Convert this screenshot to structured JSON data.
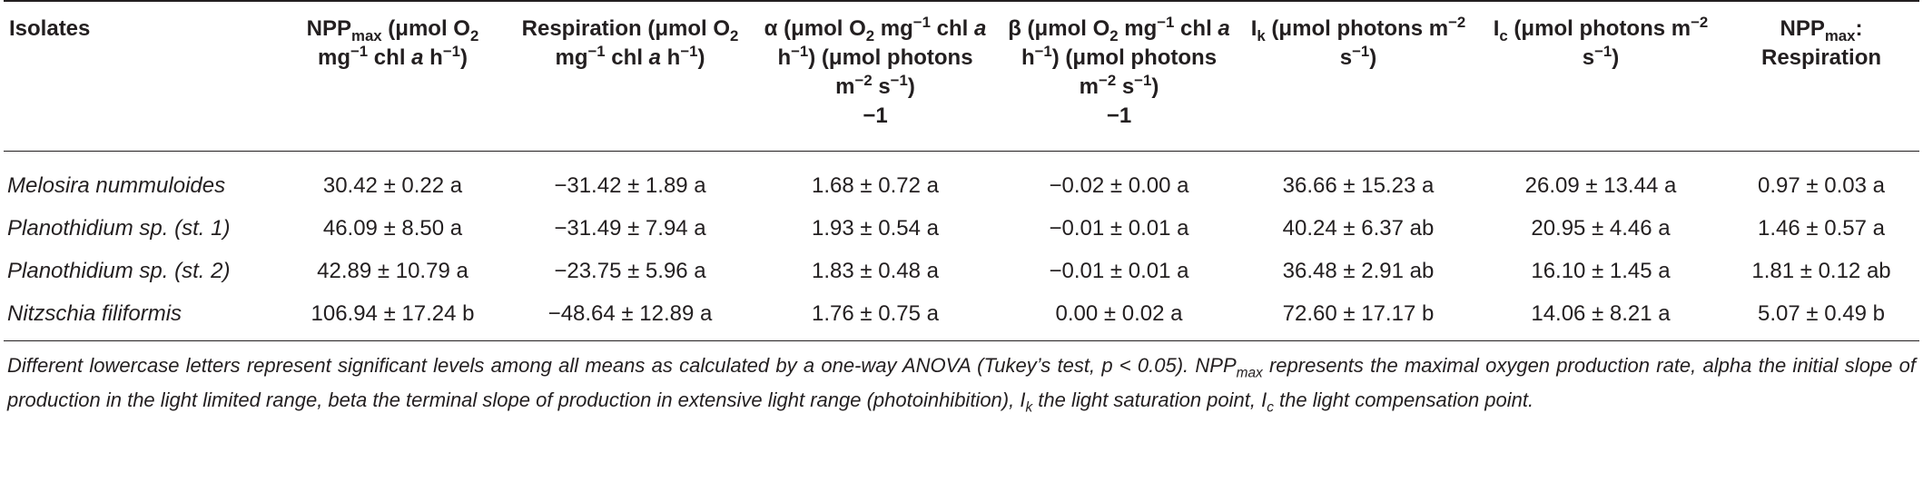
{
  "header": [
    [
      "Isolates"
    ],
    [
      "NPP",
      "max",
      " (μmol O",
      "2",
      " mg",
      "−1",
      " chl ",
      "a",
      " h",
      "−1",
      ")"
    ],
    [
      "Respiration (μmol O",
      "2",
      " mg",
      "−1",
      " chl ",
      "a",
      " h",
      "−1",
      ")"
    ],
    [
      "α (μmol O",
      "2",
      " mg",
      "−1",
      " chl ",
      "a",
      " h",
      "−1",
      ") (μmol photons m",
      "−2",
      " s",
      "−1",
      ")",
      "−1"
    ],
    [
      "β (μmol O",
      "2",
      " mg",
      "−1",
      " chl ",
      "a",
      " h",
      "−1",
      ") (μmol photons m",
      "−2",
      " s",
      "−1",
      ")",
      "−1"
    ],
    [
      "I",
      "k",
      " (μmol photons m",
      "−2",
      " s",
      "−1",
      ")"
    ],
    [
      "I",
      "c",
      " (μmol photons m",
      "−2",
      " s",
      "−1",
      ")"
    ],
    [
      "NPP",
      "max",
      ": Respiration"
    ]
  ],
  "rows": [
    [
      "Melosira nummuloides",
      "30.42 ± 0.22 a",
      "−31.42 ± 1.89 a",
      "1.68 ± 0.72 a",
      "−0.02 ± 0.00 a",
      "36.66 ± 15.23 a",
      "26.09 ± 13.44 a",
      "0.97 ± 0.03 a"
    ],
    [
      "Planothidium sp. (st. 1)",
      "46.09 ± 8.50 a",
      "−31.49 ± 7.94 a",
      "1.93 ± 0.54 a",
      "−0.01 ± 0.01 a",
      "40.24 ± 6.37 ab",
      "20.95 ± 4.46 a",
      "1.46 ± 0.57 a"
    ],
    [
      "Planothidium sp. (st. 2)",
      "42.89 ± 10.79 a",
      "−23.75 ± 5.96 a",
      "1.83 ± 0.48 a",
      "−0.01 ± 0.01 a",
      "36.48 ± 2.91 ab",
      "16.10 ± 1.45 a",
      "1.81 ± 0.12 ab"
    ],
    [
      "Nitzschia filiformis",
      "106.94 ± 17.24 b",
      "−48.64 ± 12.89 a",
      "1.76 ± 0.75 a",
      "0.00 ± 0.02 a",
      "72.60 ± 17.17 b",
      "14.06 ± 8.21 a",
      "5.07 ± 0.49 b"
    ]
  ],
  "footnote": [
    "Different lowercase letters represent significant levels among all means as calculated by a one-way ANOVA (Tukey’s test, p < 0.05). NPP",
    "max",
    " represents the maximal oxygen production rate, alpha the initial slope of production in the light limited range, beta the terminal slope of production in extensive light range (photoinhibition), I",
    "k",
    " the light saturation point, I",
    "c",
    " the light compensation point."
  ]
}
